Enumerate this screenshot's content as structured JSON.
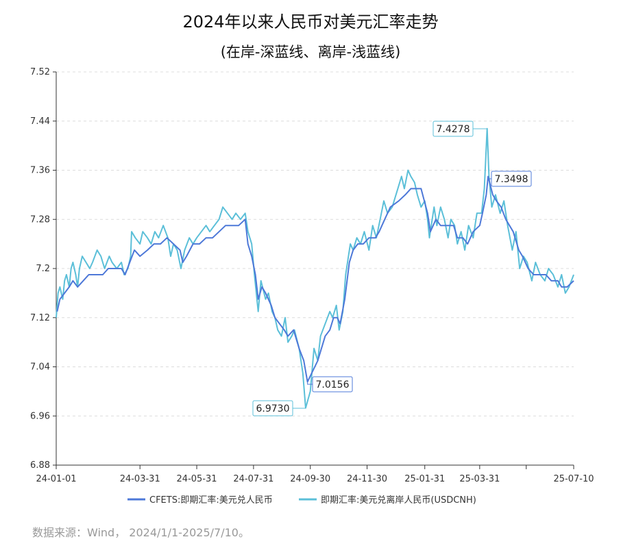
{
  "chart_data": {
    "type": "line",
    "title": "2024年以来人民币对美元汇率走势",
    "subtitle": "(在岸-深蓝线、离岸-浅蓝线)",
    "xlabel": "",
    "ylabel": "",
    "ylim": [
      6.88,
      7.52
    ],
    "yticks": [
      "6.88",
      "6.96",
      "7.04",
      "7.12",
      "7.2",
      "7.28",
      "7.36",
      "7.44",
      "7.52"
    ],
    "xlim": [
      "2024-01-01",
      "2025-07-10"
    ],
    "xticks": [
      "24-01-01",
      "24-03-31",
      "24-05-31",
      "24-07-31",
      "24-09-30",
      "24-11-30",
      "25-01-31",
      "25-03-31",
      "25-07-10"
    ],
    "grid": true,
    "legend_position": "bottom",
    "series": [
      {
        "name": "CFETS:即期汇率:美元兑人民币",
        "color": "#4d78d8",
        "points": [
          [
            "2024-01-02",
            7.13
          ],
          [
            "2024-01-05",
            7.15
          ],
          [
            "2024-01-10",
            7.16
          ],
          [
            "2024-01-15",
            7.17
          ],
          [
            "2024-01-19",
            7.18
          ],
          [
            "2024-01-24",
            7.17
          ],
          [
            "2024-01-30",
            7.18
          ],
          [
            "2024-02-05",
            7.19
          ],
          [
            "2024-02-12",
            7.19
          ],
          [
            "2024-02-20",
            7.19
          ],
          [
            "2024-02-26",
            7.2
          ],
          [
            "2024-03-04",
            7.2
          ],
          [
            "2024-03-11",
            7.2
          ],
          [
            "2024-03-15",
            7.19
          ],
          [
            "2024-03-20",
            7.21
          ],
          [
            "2024-03-25",
            7.23
          ],
          [
            "2024-03-31",
            7.22
          ],
          [
            "2024-04-08",
            7.23
          ],
          [
            "2024-04-15",
            7.24
          ],
          [
            "2024-04-22",
            7.24
          ],
          [
            "2024-04-29",
            7.25
          ],
          [
            "2024-05-06",
            7.24
          ],
          [
            "2024-05-13",
            7.23
          ],
          [
            "2024-05-16",
            7.21
          ],
          [
            "2024-05-20",
            7.22
          ],
          [
            "2024-05-27",
            7.24
          ],
          [
            "2024-06-03",
            7.24
          ],
          [
            "2024-06-10",
            7.25
          ],
          [
            "2024-06-17",
            7.25
          ],
          [
            "2024-06-24",
            7.26
          ],
          [
            "2024-07-01",
            7.27
          ],
          [
            "2024-07-08",
            7.27
          ],
          [
            "2024-07-15",
            7.27
          ],
          [
            "2024-07-22",
            7.28
          ],
          [
            "2024-07-25",
            7.24
          ],
          [
            "2024-07-29",
            7.22
          ],
          [
            "2024-08-02",
            7.19
          ],
          [
            "2024-08-05",
            7.15
          ],
          [
            "2024-08-09",
            7.17
          ],
          [
            "2024-08-13",
            7.16
          ],
          [
            "2024-08-19",
            7.14
          ],
          [
            "2024-08-23",
            7.12
          ],
          [
            "2024-08-28",
            7.11
          ],
          [
            "2024-09-02",
            7.1
          ],
          [
            "2024-09-06",
            7.09
          ],
          [
            "2024-09-12",
            7.1
          ],
          [
            "2024-09-18",
            7.07
          ],
          [
            "2024-09-23",
            7.05
          ],
          [
            "2024-09-27",
            7.0156
          ],
          [
            "2024-10-08",
            7.05
          ],
          [
            "2024-10-12",
            7.07
          ],
          [
            "2024-10-16",
            7.09
          ],
          [
            "2024-10-21",
            7.1
          ],
          [
            "2024-10-25",
            7.12
          ],
          [
            "2024-10-29",
            7.12
          ],
          [
            "2024-11-01",
            7.11
          ],
          [
            "2024-11-06",
            7.15
          ],
          [
            "2024-11-11",
            7.21
          ],
          [
            "2024-11-15",
            7.23
          ],
          [
            "2024-11-20",
            7.24
          ],
          [
            "2024-11-26",
            7.24
          ],
          [
            "2024-12-02",
            7.25
          ],
          [
            "2024-12-09",
            7.25
          ],
          [
            "2024-12-13",
            7.26
          ],
          [
            "2024-12-19",
            7.28
          ],
          [
            "2024-12-25",
            7.3
          ],
          [
            "2025-01-03",
            7.31
          ],
          [
            "2025-01-10",
            7.32
          ],
          [
            "2025-01-16",
            7.33
          ],
          [
            "2025-01-22",
            7.33
          ],
          [
            "2025-01-27",
            7.33
          ],
          [
            "2025-02-03",
            7.29
          ],
          [
            "2025-02-06",
            7.26
          ],
          [
            "2025-02-12",
            7.28
          ],
          [
            "2025-02-17",
            7.27
          ],
          [
            "2025-02-24",
            7.27
          ],
          [
            "2025-03-03",
            7.27
          ],
          [
            "2025-03-07",
            7.25
          ],
          [
            "2025-03-13",
            7.25
          ],
          [
            "2025-03-18",
            7.24
          ],
          [
            "2025-03-24",
            7.26
          ],
          [
            "2025-03-31",
            7.27
          ],
          [
            "2025-04-03",
            7.29
          ],
          [
            "2025-04-07",
            7.32
          ],
          [
            "2025-04-09",
            7.3498
          ],
          [
            "2025-04-14",
            7.32
          ],
          [
            "2025-04-18",
            7.31
          ],
          [
            "2025-04-23",
            7.3
          ],
          [
            "2025-04-28",
            7.28
          ],
          [
            "2025-05-06",
            7.26
          ],
          [
            "2025-05-12",
            7.23
          ],
          [
            "2025-05-16",
            7.22
          ],
          [
            "2025-05-22",
            7.2
          ],
          [
            "2025-05-28",
            7.19
          ],
          [
            "2025-06-03",
            7.19
          ],
          [
            "2025-06-10",
            7.19
          ],
          [
            "2025-06-16",
            7.18
          ],
          [
            "2025-06-23",
            7.18
          ],
          [
            "2025-06-27",
            7.17
          ],
          [
            "2025-07-03",
            7.17
          ],
          [
            "2025-07-10",
            7.18
          ]
        ]
      },
      {
        "name": "即期汇率:美元兑离岸人民币(USDCNH)",
        "color": "#5bbfd8",
        "points": [
          [
            "2024-01-01",
            7.12
          ],
          [
            "2024-01-03",
            7.16
          ],
          [
            "2024-01-05",
            7.17
          ],
          [
            "2024-01-08",
            7.15
          ],
          [
            "2024-01-10",
            7.18
          ],
          [
            "2024-01-12",
            7.19
          ],
          [
            "2024-01-15",
            7.17
          ],
          [
            "2024-01-17",
            7.2
          ],
          [
            "2024-01-19",
            7.21
          ],
          [
            "2024-01-22",
            7.19
          ],
          [
            "2024-01-24",
            7.17
          ],
          [
            "2024-01-26",
            7.2
          ],
          [
            "2024-01-29",
            7.22
          ],
          [
            "2024-02-02",
            7.21
          ],
          [
            "2024-02-06",
            7.2
          ],
          [
            "2024-02-09",
            7.21
          ],
          [
            "2024-02-14",
            7.23
          ],
          [
            "2024-02-18",
            7.22
          ],
          [
            "2024-02-22",
            7.2
          ],
          [
            "2024-02-27",
            7.22
          ],
          [
            "2024-03-01",
            7.21
          ],
          [
            "2024-03-06",
            7.2
          ],
          [
            "2024-03-11",
            7.21
          ],
          [
            "2024-03-14",
            7.19
          ],
          [
            "2024-03-18",
            7.2
          ],
          [
            "2024-03-21",
            7.22
          ],
          [
            "2024-03-22",
            7.26
          ],
          [
            "2024-03-26",
            7.25
          ],
          [
            "2024-03-31",
            7.24
          ],
          [
            "2024-04-03",
            7.26
          ],
          [
            "2024-04-08",
            7.25
          ],
          [
            "2024-04-12",
            7.24
          ],
          [
            "2024-04-16",
            7.26
          ],
          [
            "2024-04-20",
            7.25
          ],
          [
            "2024-04-25",
            7.27
          ],
          [
            "2024-04-30",
            7.25
          ],
          [
            "2024-05-03",
            7.22
          ],
          [
            "2024-05-06",
            7.24
          ],
          [
            "2024-05-10",
            7.23
          ],
          [
            "2024-05-14",
            7.2
          ],
          [
            "2024-05-18",
            7.23
          ],
          [
            "2024-05-23",
            7.25
          ],
          [
            "2024-05-27",
            7.24
          ],
          [
            "2024-05-31",
            7.25
          ],
          [
            "2024-06-05",
            7.26
          ],
          [
            "2024-06-10",
            7.27
          ],
          [
            "2024-06-14",
            7.26
          ],
          [
            "2024-06-19",
            7.27
          ],
          [
            "2024-06-24",
            7.28
          ],
          [
            "2024-06-28",
            7.3
          ],
          [
            "2024-07-03",
            7.29
          ],
          [
            "2024-07-08",
            7.28
          ],
          [
            "2024-07-12",
            7.29
          ],
          [
            "2024-07-17",
            7.28
          ],
          [
            "2024-07-22",
            7.29
          ],
          [
            "2024-07-25",
            7.26
          ],
          [
            "2024-07-29",
            7.24
          ],
          [
            "2024-08-01",
            7.19
          ],
          [
            "2024-08-05",
            7.13
          ],
          [
            "2024-08-08",
            7.18
          ],
          [
            "2024-08-13",
            7.15
          ],
          [
            "2024-08-16",
            7.16
          ],
          [
            "2024-08-20",
            7.13
          ],
          [
            "2024-08-23",
            7.12
          ],
          [
            "2024-08-26",
            7.1
          ],
          [
            "2024-08-30",
            7.09
          ],
          [
            "2024-09-03",
            7.12
          ],
          [
            "2024-09-06",
            7.08
          ],
          [
            "2024-09-10",
            7.09
          ],
          [
            "2024-09-13",
            7.1
          ],
          [
            "2024-09-18",
            7.07
          ],
          [
            "2024-09-22",
            7.03
          ],
          [
            "2024-09-25",
            6.973
          ],
          [
            "2024-09-30",
            7.0
          ],
          [
            "2024-10-04",
            7.07
          ],
          [
            "2024-10-08",
            7.05
          ],
          [
            "2024-10-11",
            7.09
          ],
          [
            "2024-10-16",
            7.11
          ],
          [
            "2024-10-21",
            7.13
          ],
          [
            "2024-10-24",
            7.12
          ],
          [
            "2024-10-28",
            7.14
          ],
          [
            "2024-10-31",
            7.1
          ],
          [
            "2024-11-04",
            7.13
          ],
          [
            "2024-11-07",
            7.19
          ],
          [
            "2024-11-12",
            7.24
          ],
          [
            "2024-11-15",
            7.23
          ],
          [
            "2024-11-19",
            7.25
          ],
          [
            "2024-11-23",
            7.24
          ],
          [
            "2024-11-27",
            7.26
          ],
          [
            "2024-12-02",
            7.23
          ],
          [
            "2024-12-06",
            7.27
          ],
          [
            "2024-12-10",
            7.25
          ],
          [
            "2024-12-14",
            7.28
          ],
          [
            "2024-12-18",
            7.31
          ],
          [
            "2024-12-22",
            7.29
          ],
          [
            "2024-12-27",
            7.3
          ],
          [
            "2025-01-02",
            7.33
          ],
          [
            "2025-01-06",
            7.35
          ],
          [
            "2025-01-09",
            7.33
          ],
          [
            "2025-01-13",
            7.36
          ],
          [
            "2025-01-16",
            7.35
          ],
          [
            "2025-01-20",
            7.34
          ],
          [
            "2025-01-23",
            7.32
          ],
          [
            "2025-01-27",
            7.3
          ],
          [
            "2025-01-31",
            7.31
          ],
          [
            "2025-02-03",
            7.28
          ],
          [
            "2025-02-05",
            7.25
          ],
          [
            "2025-02-10",
            7.3
          ],
          [
            "2025-02-13",
            7.27
          ],
          [
            "2025-02-17",
            7.3
          ],
          [
            "2025-02-21",
            7.28
          ],
          [
            "2025-02-25",
            7.25
          ],
          [
            "2025-02-28",
            7.28
          ],
          [
            "2025-03-04",
            7.27
          ],
          [
            "2025-03-07",
            7.24
          ],
          [
            "2025-03-11",
            7.26
          ],
          [
            "2025-03-15",
            7.23
          ],
          [
            "2025-03-19",
            7.27
          ],
          [
            "2025-03-24",
            7.25
          ],
          [
            "2025-03-28",
            7.29
          ],
          [
            "2025-04-02",
            7.29
          ],
          [
            "2025-04-05",
            7.33
          ],
          [
            "2025-04-08",
            7.4278
          ],
          [
            "2025-04-10",
            7.35
          ],
          [
            "2025-04-13",
            7.3
          ],
          [
            "2025-04-17",
            7.32
          ],
          [
            "2025-04-22",
            7.29
          ],
          [
            "2025-04-26",
            7.31
          ],
          [
            "2025-04-30",
            7.27
          ],
          [
            "2025-05-05",
            7.23
          ],
          [
            "2025-05-09",
            7.26
          ],
          [
            "2025-05-13",
            7.2
          ],
          [
            "2025-05-17",
            7.22
          ],
          [
            "2025-05-21",
            7.21
          ],
          [
            "2025-05-26",
            7.18
          ],
          [
            "2025-05-30",
            7.21
          ],
          [
            "2025-06-04",
            7.19
          ],
          [
            "2025-06-09",
            7.18
          ],
          [
            "2025-06-13",
            7.2
          ],
          [
            "2025-06-18",
            7.19
          ],
          [
            "2025-06-23",
            7.17
          ],
          [
            "2025-06-27",
            7.19
          ],
          [
            "2025-07-01",
            7.16
          ],
          [
            "2025-07-05",
            7.17
          ],
          [
            "2025-07-10",
            7.19
          ]
        ]
      }
    ],
    "annotations": [
      {
        "label": "7.4278",
        "date": "2025-04-08",
        "value": 7.4278,
        "series": 1
      },
      {
        "label": "7.3498",
        "date": "2025-04-09",
        "value": 7.3498,
        "series": 0
      },
      {
        "label": "7.0156",
        "date": "2024-09-27",
        "value": 7.0156,
        "series": 0
      },
      {
        "label": "6.9730",
        "date": "2024-09-25",
        "value": 6.973,
        "series": 1
      }
    ]
  },
  "source_note": "数据来源：Wind， 2024/1/1-2025/7/10。"
}
